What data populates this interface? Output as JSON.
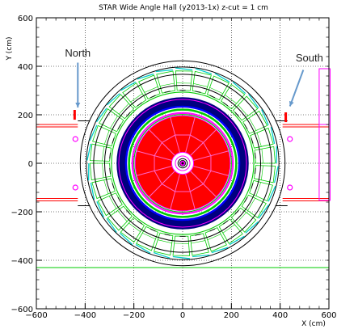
{
  "chart_data": {
    "type": "diagram",
    "title": "STAR Wide Angle Hall (y2013-1x)  z-cut = 1 cm",
    "xlabel": "X (cm)",
    "ylabel": "Y (cm)",
    "xlim": [
      -600,
      600
    ],
    "ylim": [
      -600,
      600
    ],
    "x_ticks": [
      -600,
      -400,
      -200,
      0,
      200,
      400,
      600
    ],
    "y_ticks": [
      -600,
      -400,
      -200,
      0,
      200,
      400,
      600
    ],
    "x_tick_labels": [
      "−600",
      "−400",
      "−200",
      "0",
      "200",
      "400",
      "600"
    ],
    "y_tick_labels": [
      "−600",
      "−400",
      "−200",
      "0",
      "200",
      "400",
      "600"
    ],
    "grid": true,
    "colors": {
      "red": "#ff0000",
      "magenta": "#ff00ff",
      "green": "#00cc00",
      "cyan": "#00cccc",
      "navy": "#000080",
      "blue": "#0000ff",
      "black": "#000000",
      "pink": "#ff66cc",
      "annotation": "#6699cc"
    },
    "annotations": [
      {
        "text": "North",
        "x": -430,
        "y": 440
      },
      {
        "text": "South",
        "x": 520,
        "y": 420
      }
    ],
    "rings": [
      {
        "r": 420,
        "color": "black"
      },
      {
        "r": 395,
        "color": "black"
      },
      {
        "r": 365,
        "color": "black"
      },
      {
        "r": 320,
        "color": "black"
      },
      {
        "r": 292,
        "color": "green"
      },
      {
        "r": 262,
        "color": "magenta"
      },
      {
        "r": 230,
        "color": "blue"
      },
      {
        "r": 222,
        "color": "green"
      },
      {
        "r": 204,
        "color": "magenta"
      },
      {
        "r": 200,
        "color": "green"
      },
      {
        "r": 40,
        "color": "magenta"
      },
      {
        "r": 28,
        "color": "magenta"
      },
      {
        "r": 18,
        "color": "black"
      },
      {
        "r": 12,
        "color": "magenta"
      }
    ],
    "tpc_sectors": 12,
    "tpc_radius": 195,
    "outer_segments": 30,
    "cross_lines_y": [
      150,
      160,
      -145,
      -155,
      -430
    ]
  }
}
